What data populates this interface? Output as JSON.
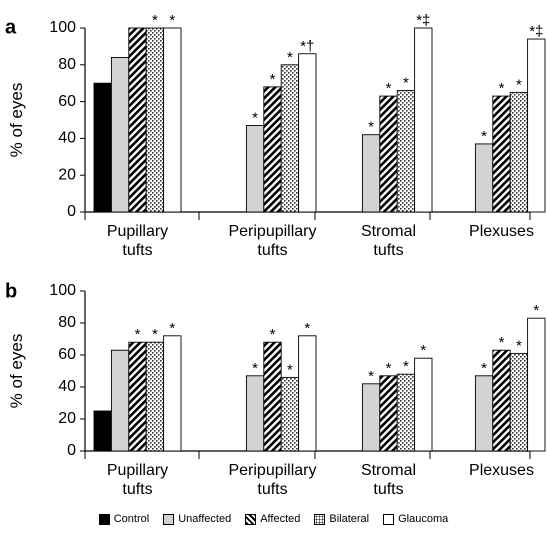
{
  "chart_data": [
    {
      "type": "bar",
      "panel_label": "a",
      "ylabel": "% of eyes",
      "ylim": [
        0,
        100
      ],
      "yticks": [
        "0",
        "20",
        "40",
        "60",
        "80",
        "100"
      ],
      "categories": [
        "Pupillary\ntufts",
        "Peripupillary\ntufts",
        "Stromal\ntufts",
        "Plexuses"
      ],
      "series": [
        {
          "name": "Control",
          "values": [
            70,
            0,
            0,
            0
          ],
          "markers": [
            "",
            "",
            "",
            ""
          ]
        },
        {
          "name": "Unaffected",
          "values": [
            84,
            47,
            42,
            37
          ],
          "markers": [
            "",
            "*",
            "*",
            "*"
          ]
        },
        {
          "name": "Affected",
          "values": [
            100,
            68,
            63,
            63
          ],
          "markers": [
            "",
            "*",
            "*",
            "*"
          ]
        },
        {
          "name": "Bilateral",
          "values": [
            100,
            80,
            66,
            65
          ],
          "markers": [
            "*",
            "*",
            "*",
            "*"
          ]
        },
        {
          "name": "Glaucoma",
          "values": [
            100,
            86,
            100,
            94
          ],
          "markers": [
            "*",
            "*†",
            "*‡",
            "*‡"
          ]
        }
      ],
      "grid": false
    },
    {
      "type": "bar",
      "panel_label": "b",
      "ylabel": "% of eyes",
      "ylim": [
        0,
        100
      ],
      "yticks": [
        "0",
        "20",
        "40",
        "60",
        "80",
        "100"
      ],
      "categories": [
        "Pupillary\ntufts",
        "Peripupillary\ntufts",
        "Stromal\ntufts",
        "Plexuses"
      ],
      "series": [
        {
          "name": "Control",
          "values": [
            25,
            0,
            0,
            0
          ],
          "markers": [
            "",
            "",
            "",
            ""
          ]
        },
        {
          "name": "Unaffected",
          "values": [
            63,
            47,
            42,
            47
          ],
          "markers": [
            "",
            "*",
            "*",
            "*"
          ]
        },
        {
          "name": "Affected",
          "values": [
            68,
            68,
            47,
            63
          ],
          "markers": [
            "*",
            "*",
            "*",
            "*"
          ]
        },
        {
          "name": "Bilateral",
          "values": [
            68,
            46,
            48,
            61
          ],
          "markers": [
            "*",
            "*",
            "*",
            "*"
          ]
        },
        {
          "name": "Glaucoma",
          "values": [
            72,
            72,
            58,
            83
          ],
          "markers": [
            "*",
            "*",
            "*",
            "*"
          ]
        }
      ],
      "grid": false
    }
  ],
  "legend": {
    "placement": "bottom",
    "items": [
      {
        "label": "Control",
        "fill": "#000000"
      },
      {
        "label": "Unaffected",
        "fill": "#d3d3d3"
      },
      {
        "label": "Affected",
        "fill": "hatch"
      },
      {
        "label": "Bilateral",
        "fill": "dots"
      },
      {
        "label": "Glaucoma",
        "fill": "#ffffff"
      }
    ]
  },
  "colors": {
    "control": "#000000",
    "unaffected": "#d3d3d3",
    "glaucoma": "#ffffff",
    "axis": "#000000"
  }
}
